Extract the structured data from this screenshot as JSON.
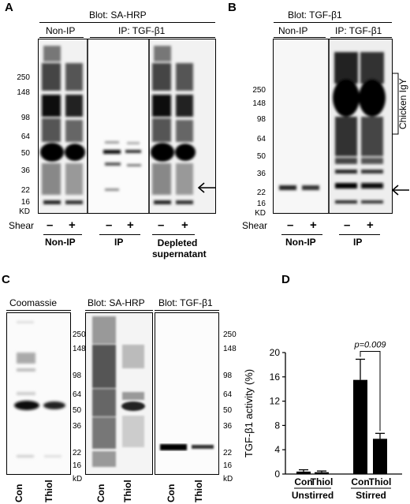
{
  "panelA": {
    "letter": "A",
    "blot": "Blot: SA-HRP",
    "group_nonip": "Non-IP",
    "group_ip": "IP: TGF-β1",
    "mw": [
      "250",
      "148",
      "98",
      "64",
      "50",
      "36",
      "22",
      "16",
      "KD"
    ],
    "shear_label": "Shear",
    "signs": [
      "–",
      "+",
      "–",
      "+",
      "–",
      "+"
    ],
    "bottom_nonip": "Non-IP",
    "bottom_ip": "IP",
    "bottom_depleted": "Depleted supernatant"
  },
  "panelB": {
    "letter": "B",
    "blot": "Blot: TGF-β1",
    "group_nonip": "Non-IP",
    "group_ip": "IP: TGF-β1",
    "mw": [
      "250",
      "148",
      "98",
      "64",
      "50",
      "36",
      "22",
      "16",
      "KD"
    ],
    "igy": "Chicken IgY",
    "shear_label": "Shear",
    "signs": [
      "–",
      "+",
      "–",
      "+"
    ],
    "bottom_nonip": "Non-IP",
    "bottom_ip": "IP"
  },
  "panelC": {
    "letter": "C",
    "coomassie": "Coomassie",
    "blot1": "Blot: SA-HRP",
    "blot2": "Blot: TGF-β1",
    "mw": [
      "250",
      "148",
      "98",
      "64",
      "50",
      "36",
      "22",
      "16",
      "kD"
    ],
    "lanes": [
      "Con",
      "Thiol",
      "Con",
      "Thiol",
      "Con",
      "Thiol"
    ]
  },
  "panelD": {
    "letter": "D"
  },
  "chart_data": {
    "type": "bar",
    "ylabel": "TGF-β1 activity (%)",
    "ylim": [
      0,
      20
    ],
    "yticks": [
      "0",
      "4",
      "8",
      "12",
      "16",
      "20"
    ],
    "categories": [
      "Con",
      "Thiol",
      "Con",
      "Thiol"
    ],
    "groups": [
      "Unstirred",
      "Stirred"
    ],
    "values": [
      0.4,
      0.3,
      15.5,
      5.8
    ],
    "errors": [
      0.3,
      0.2,
      3.4,
      0.9
    ],
    "annotation": "p=0.009"
  }
}
